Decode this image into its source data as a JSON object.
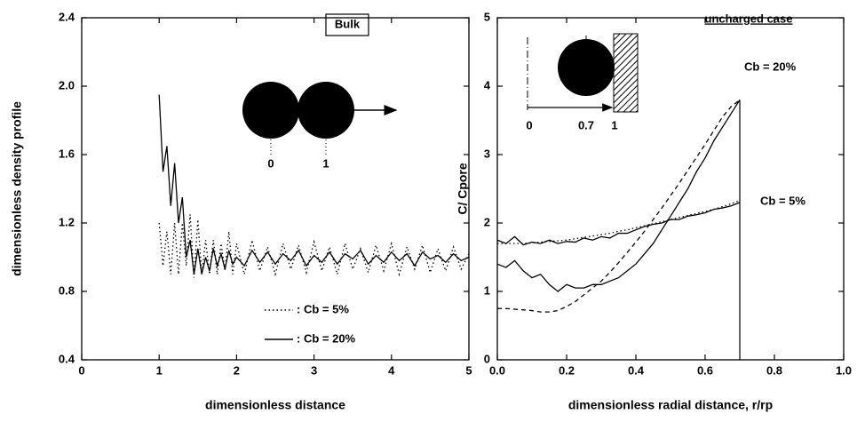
{
  "chart_data": [
    {
      "type": "line",
      "x_label": "dimensionless distance",
      "y_label": "dimensionless density profile",
      "xlim": [
        0,
        5
      ],
      "ylim": [
        0.4,
        2.4
      ],
      "xticks": [
        0,
        1,
        2,
        3,
        4,
        5
      ],
      "yticks": [
        0.4,
        0.8,
        1.2,
        1.6,
        {
          "value": 2,
          "label": "2.0"
        },
        2.4
      ],
      "x": [
        1,
        1.05,
        1.1,
        1.15,
        1.2,
        1.25,
        1.3,
        1.35,
        1.4,
        1.45,
        1.5,
        1.55,
        1.6,
        1.65,
        1.7,
        1.75,
        1.8,
        1.85,
        1.9,
        1.95,
        2,
        2.1,
        2.2,
        2.3,
        2.4,
        2.5,
        2.6,
        2.7,
        2.8,
        2.9,
        3,
        3.1,
        3.2,
        3.3,
        3.4,
        3.5,
        3.6,
        3.7,
        3.8,
        3.9,
        4,
        4.1,
        4.2,
        4.3,
        4.4,
        4.5,
        4.6,
        4.7,
        4.8,
        4.9,
        5
      ],
      "series": [
        {
          "name": ": Cb = 5%",
          "color": "#000000",
          "style": "dotted",
          "values": [
            1.2,
            0.95,
            1.15,
            0.9,
            1.2,
            0.9,
            1.2,
            0.95,
            1.25,
            0.88,
            1.22,
            0.9,
            1.1,
            0.9,
            1.1,
            0.9,
            1.08,
            0.92,
            1.15,
            0.9,
            1.08,
            0.9,
            1.1,
            0.92,
            1.06,
            0.9,
            1.08,
            0.93,
            1.07,
            0.91,
            1.09,
            0.92,
            1.06,
            0.9,
            1.08,
            0.93,
            1.05,
            0.91,
            1.07,
            0.92,
            1.08,
            0.9,
            1.06,
            0.93,
            1.07,
            0.91,
            1.05,
            0.92,
            1.06,
            0.93,
            1.02
          ]
        },
        {
          "name": ": Cb = 20%",
          "color": "#000000",
          "style": "solid",
          "values": [
            1.95,
            1.5,
            1.65,
            1.3,
            1.55,
            1.2,
            1.35,
            1.0,
            1.1,
            0.9,
            1.05,
            0.9,
            1.0,
            0.92,
            1.05,
            0.95,
            1.02,
            0.93,
            1.04,
            0.96,
            1.0,
            0.95,
            1.04,
            0.97,
            1.03,
            0.96,
            1.02,
            0.98,
            1.04,
            0.95,
            1.01,
            0.97,
            1.03,
            0.96,
            1.02,
            0.99,
            1.04,
            0.96,
            1.01,
            0.97,
            1.03,
            0.98,
            1.02,
            0.95,
            1.03,
            0.99,
            1.01,
            0.97,
            1.02,
            0.98,
            1.0
          ]
        }
      ],
      "annotations": {
        "box_label": "Bulk",
        "inset_labels": [
          "0",
          "1"
        ]
      }
    },
    {
      "type": "line",
      "x_label": "dimensionless radial distance, r/rp",
      "y_label": "C/ Cpore",
      "xlim": [
        0,
        1
      ],
      "ylim": [
        0,
        5
      ],
      "xticks": [
        {
          "value": 0,
          "label": "0.0"
        },
        0.2,
        0.4,
        0.6,
        0.8,
        {
          "value": 1,
          "label": "1.0"
        }
      ],
      "yticks": [
        0,
        1,
        2,
        3,
        4,
        5
      ],
      "x": [
        0,
        0.025,
        0.05,
        0.075,
        0.1,
        0.125,
        0.15,
        0.175,
        0.2,
        0.225,
        0.25,
        0.275,
        0.3,
        0.325,
        0.35,
        0.375,
        0.4,
        0.425,
        0.45,
        0.475,
        0.5,
        0.525,
        0.55,
        0.575,
        0.6,
        0.625,
        0.65,
        0.675,
        0.7
      ],
      "series": [
        {
          "color": "#000000",
          "style": "solid",
          "values": [
            1.4,
            1.35,
            1.45,
            1.3,
            1.2,
            1.25,
            1.1,
            1.0,
            1.1,
            1.05,
            1.05,
            1.1,
            1.1,
            1.15,
            1.2,
            1.3,
            1.4,
            1.55,
            1.7,
            1.9,
            2.1,
            2.3,
            2.5,
            2.75,
            2.95,
            3.2,
            3.4,
            3.6,
            3.8
          ]
        },
        {
          "color": "#000000",
          "style": "dashed",
          "values": [
            0.75,
            0.75,
            0.74,
            0.73,
            0.72,
            0.7,
            0.7,
            0.72,
            0.78,
            0.85,
            0.95,
            1.05,
            1.15,
            1.28,
            1.42,
            1.57,
            1.72,
            1.88,
            2.05,
            2.22,
            2.4,
            2.58,
            2.77,
            2.96,
            3.15,
            3.35,
            3.55,
            3.7,
            3.8
          ]
        },
        {
          "color": "#000000",
          "style": "solid",
          "values": [
            1.75,
            1.7,
            1.8,
            1.68,
            1.72,
            1.7,
            1.75,
            1.7,
            1.73,
            1.72,
            1.78,
            1.75,
            1.8,
            1.78,
            1.85,
            1.85,
            1.9,
            1.95,
            1.98,
            2.0,
            2.05,
            2.05,
            2.1,
            2.12,
            2.15,
            2.2,
            2.22,
            2.25,
            2.3
          ]
        },
        {
          "color": "#000000",
          "style": "dotted",
          "values": [
            1.7,
            1.7,
            1.7,
            1.7,
            1.71,
            1.72,
            1.73,
            1.74,
            1.75,
            1.77,
            1.79,
            1.81,
            1.83,
            1.85,
            1.88,
            1.9,
            1.93,
            1.96,
            1.99,
            2.02,
            2.05,
            2.08,
            2.11,
            2.14,
            2.17,
            2.2,
            2.24,
            2.28,
            2.33
          ]
        }
      ],
      "annotations": {
        "title_note": "uncharged case",
        "inset_labels": [
          "0",
          "0.7",
          "1"
        ],
        "curve_labels": [
          "Cb = 20%",
          "Cb = 5%"
        ]
      }
    }
  ]
}
